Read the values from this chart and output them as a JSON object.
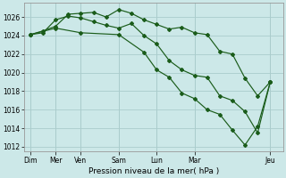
{
  "background_color": "#cce8e8",
  "grid_color": "#aacccc",
  "line_color": "#1a5c1a",
  "marker_color": "#1a5c1a",
  "xlabel": "Pression niveau de la mer( hPa )",
  "ylim": [
    1011.5,
    1027.5
  ],
  "yticks": [
    1012,
    1014,
    1016,
    1018,
    1020,
    1022,
    1024,
    1026
  ],
  "xtick_major_labels": [
    "Dim",
    "Mer",
    "Ven",
    "Sam",
    "Lun",
    "Mar",
    "Jeu"
  ],
  "xtick_major_positions": [
    0,
    2,
    4,
    7,
    10,
    13,
    19
  ],
  "series1_x": [
    0,
    1,
    2,
    3,
    4,
    5,
    6,
    7,
    8,
    9,
    10,
    11,
    12,
    13,
    14,
    15,
    16,
    17,
    18,
    19
  ],
  "series1_y": [
    1024.1,
    1024.5,
    1025.0,
    1026.3,
    1026.4,
    1026.5,
    1026.0,
    1026.8,
    1026.4,
    1025.7,
    1025.2,
    1024.7,
    1024.9,
    1024.3,
    1024.1,
    1022.3,
    1022.0,
    1019.4,
    1017.5,
    1019.0
  ],
  "series2_x": [
    0,
    1,
    2,
    3,
    4,
    5,
    6,
    7,
    8,
    9,
    10,
    11,
    12,
    13,
    14,
    15,
    16,
    17,
    18,
    19
  ],
  "series2_y": [
    1024.1,
    1024.3,
    1025.7,
    1026.1,
    1025.9,
    1025.5,
    1025.1,
    1024.8,
    1025.3,
    1024.0,
    1023.1,
    1021.3,
    1020.3,
    1019.7,
    1019.5,
    1017.5,
    1017.0,
    1015.8,
    1013.5,
    1019.0
  ],
  "series3_x": [
    0,
    2,
    4,
    7,
    9,
    10,
    11,
    12,
    13,
    14,
    15,
    16,
    17,
    18,
    19
  ],
  "series3_y": [
    1024.1,
    1024.8,
    1024.3,
    1024.1,
    1022.2,
    1020.3,
    1019.5,
    1017.8,
    1017.2,
    1016.0,
    1015.5,
    1013.8,
    1012.2,
    1014.2,
    1019.0
  ]
}
